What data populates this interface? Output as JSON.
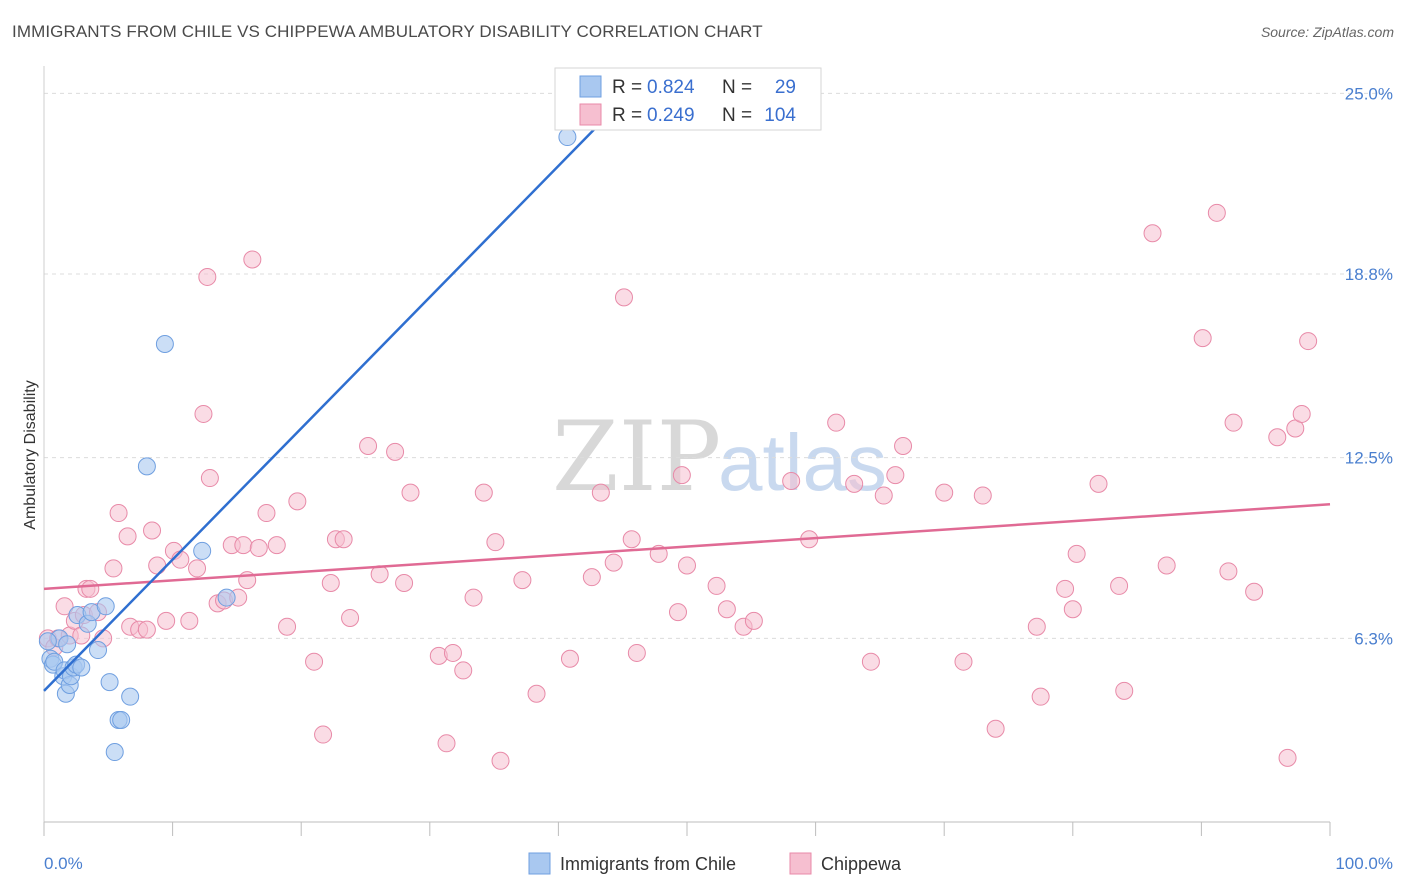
{
  "chart_data": {
    "type": "scatter",
    "title": "IMMIGRANTS FROM CHILE VS CHIPPEWA AMBULATORY DISABILITY CORRELATION CHART",
    "source": "Source: ZipAtlas.com",
    "ylabel": "Ambulatory Disability",
    "xlabel": "",
    "xlim": [
      0,
      100
    ],
    "ylim": [
      0,
      25.8
    ],
    "x_tick_labels": [
      "0.0%",
      "100.0%"
    ],
    "y_ticks": [
      6.3,
      12.5,
      18.8,
      25.0
    ],
    "y_tick_labels": [
      "6.3%",
      "12.5%",
      "18.8%",
      "25.0%"
    ],
    "watermark": {
      "zip": "ZIP",
      "atlas": "atlas"
    },
    "stats": {
      "r_label": "R =",
      "n_label": "N =",
      "rows": [
        {
          "series": "Immigrants from Chile",
          "r": "0.824",
          "n": "29"
        },
        {
          "series": "Chippewa",
          "r": "0.249",
          "n": "104"
        }
      ]
    },
    "colors": {
      "chile_fill": "#a9c8f0",
      "chile_stroke": "#6f9fe0",
      "chile_line": "#2f6fd0",
      "chippewa_fill": "#f6bfd0",
      "chippewa_stroke": "#e88aa8",
      "chippewa_line": "#e06a94",
      "value_text": "#3a6fcf",
      "grid": "#dcdcdc"
    },
    "series": [
      {
        "name": "Immigrants from Chile",
        "trend": {
          "x0": 0,
          "y0": 4.5,
          "x1": 44.2,
          "y1": 24.4
        },
        "points": [
          [
            0.5,
            5.6
          ],
          [
            0.7,
            5.4
          ],
          [
            0.8,
            5.5
          ],
          [
            1.2,
            6.3
          ],
          [
            1.5,
            5.0
          ],
          [
            1.6,
            5.2
          ],
          [
            1.7,
            4.4
          ],
          [
            1.8,
            6.1
          ],
          [
            2.0,
            4.7
          ],
          [
            2.1,
            5.0
          ],
          [
            2.3,
            5.3
          ],
          [
            2.5,
            5.4
          ],
          [
            2.6,
            7.1
          ],
          [
            2.9,
            5.3
          ],
          [
            3.4,
            6.8
          ],
          [
            3.7,
            7.2
          ],
          [
            4.2,
            5.9
          ],
          [
            4.8,
            7.4
          ],
          [
            5.1,
            4.8
          ],
          [
            5.5,
            2.4
          ],
          [
            5.8,
            3.5
          ],
          [
            6.0,
            3.5
          ],
          [
            6.7,
            4.3
          ],
          [
            8.0,
            12.2
          ],
          [
            9.4,
            16.4
          ],
          [
            12.3,
            9.3
          ],
          [
            14.2,
            7.7
          ],
          [
            40.7,
            23.5
          ],
          [
            0.3,
            6.2
          ]
        ]
      },
      {
        "name": "Chippewa",
        "trend": {
          "x0": 0,
          "y0": 8.0,
          "x1": 100,
          "y1": 10.9
        },
        "points": [
          [
            0.3,
            6.3
          ],
          [
            0.8,
            6.0
          ],
          [
            1.1,
            6.3
          ],
          [
            1.6,
            7.4
          ],
          [
            2.0,
            6.4
          ],
          [
            2.4,
            6.9
          ],
          [
            2.9,
            6.4
          ],
          [
            3.1,
            7.1
          ],
          [
            3.3,
            8.0
          ],
          [
            3.6,
            8.0
          ],
          [
            4.2,
            7.2
          ],
          [
            4.6,
            6.3
          ],
          [
            5.4,
            8.7
          ],
          [
            5.8,
            10.6
          ],
          [
            6.5,
            9.8
          ],
          [
            6.7,
            6.7
          ],
          [
            7.4,
            6.6
          ],
          [
            8.0,
            6.6
          ],
          [
            8.4,
            10.0
          ],
          [
            8.8,
            8.8
          ],
          [
            9.5,
            6.9
          ],
          [
            10.1,
            9.3
          ],
          [
            10.6,
            9.0
          ],
          [
            11.3,
            6.9
          ],
          [
            11.9,
            8.7
          ],
          [
            12.4,
            14.0
          ],
          [
            12.7,
            18.7
          ],
          [
            12.9,
            11.8
          ],
          [
            13.5,
            7.5
          ],
          [
            14.0,
            7.6
          ],
          [
            14.6,
            9.5
          ],
          [
            15.1,
            7.7
          ],
          [
            15.5,
            9.5
          ],
          [
            15.8,
            8.3
          ],
          [
            16.2,
            19.3
          ],
          [
            16.7,
            9.4
          ],
          [
            17.3,
            10.6
          ],
          [
            18.1,
            9.5
          ],
          [
            18.9,
            6.7
          ],
          [
            19.7,
            11.0
          ],
          [
            21.0,
            5.5
          ],
          [
            21.7,
            3.0
          ],
          [
            22.3,
            8.2
          ],
          [
            22.7,
            9.7
          ],
          [
            23.3,
            9.7
          ],
          [
            23.8,
            7.0
          ],
          [
            25.2,
            12.9
          ],
          [
            26.1,
            8.5
          ],
          [
            27.3,
            12.7
          ],
          [
            28.0,
            8.2
          ],
          [
            28.5,
            11.3
          ],
          [
            30.7,
            5.7
          ],
          [
            31.3,
            2.7
          ],
          [
            31.8,
            5.8
          ],
          [
            32.6,
            5.2
          ],
          [
            33.4,
            7.7
          ],
          [
            34.2,
            11.3
          ],
          [
            35.1,
            9.6
          ],
          [
            35.5,
            2.1
          ],
          [
            37.2,
            8.3
          ],
          [
            38.3,
            4.4
          ],
          [
            40.9,
            5.6
          ],
          [
            42.6,
            8.4
          ],
          [
            43.3,
            11.3
          ],
          [
            44.3,
            8.9
          ],
          [
            45.1,
            18.0
          ],
          [
            45.7,
            9.7
          ],
          [
            46.1,
            5.8
          ],
          [
            47.8,
            9.2
          ],
          [
            49.3,
            7.2
          ],
          [
            49.6,
            11.9
          ],
          [
            50.0,
            8.8
          ],
          [
            52.3,
            8.1
          ],
          [
            53.1,
            7.3
          ],
          [
            54.4,
            6.7
          ],
          [
            55.2,
            6.9
          ],
          [
            58.1,
            11.7
          ],
          [
            59.5,
            9.7
          ],
          [
            61.6,
            13.7
          ],
          [
            63.0,
            11.6
          ],
          [
            64.3,
            5.5
          ],
          [
            65.3,
            11.2
          ],
          [
            66.2,
            11.9
          ],
          [
            66.8,
            12.9
          ],
          [
            70.0,
            11.3
          ],
          [
            71.5,
            5.5
          ],
          [
            73.0,
            11.2
          ],
          [
            74.0,
            3.2
          ],
          [
            77.2,
            6.7
          ],
          [
            77.5,
            4.3
          ],
          [
            79.4,
            8.0
          ],
          [
            80.0,
            7.3
          ],
          [
            80.3,
            9.2
          ],
          [
            82.0,
            11.6
          ],
          [
            83.6,
            8.1
          ],
          [
            84.0,
            4.5
          ],
          [
            86.2,
            20.2
          ],
          [
            87.3,
            8.8
          ],
          [
            90.1,
            16.6
          ],
          [
            91.2,
            20.9
          ],
          [
            92.1,
            8.6
          ],
          [
            92.5,
            13.7
          ],
          [
            94.1,
            7.9
          ],
          [
            95.9,
            13.2
          ],
          [
            96.7,
            2.2
          ],
          [
            97.3,
            13.5
          ],
          [
            97.8,
            14.0
          ],
          [
            98.3,
            16.5
          ]
        ]
      }
    ],
    "legend": [
      "Immigrants from Chile",
      "Chippewa"
    ]
  }
}
